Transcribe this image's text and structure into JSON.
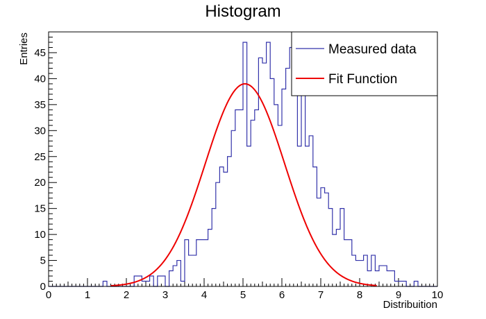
{
  "chart_data": {
    "type": "histogram",
    "title": "Histogram",
    "xlabel": "Distribuition",
    "ylabel": "Entries",
    "xlim": [
      0,
      10
    ],
    "ylim": [
      0,
      49
    ],
    "x_ticks": [
      "0",
      "1",
      "2",
      "3",
      "4",
      "5",
      "6",
      "7",
      "8",
      "9",
      "10"
    ],
    "y_ticks": [
      "0",
      "5",
      "10",
      "15",
      "20",
      "25",
      "30",
      "35",
      "40",
      "45"
    ],
    "bins": {
      "start": 0,
      "width": 0.1,
      "count": 100
    },
    "series": [
      {
        "name": "Measured data",
        "kind": "step",
        "color": "#3333aa",
        "values": [
          0,
          0,
          0,
          0,
          0,
          0,
          0,
          0,
          0,
          0,
          0,
          0,
          0,
          0,
          1,
          0,
          0,
          0,
          0,
          0,
          0,
          0,
          2,
          2,
          1,
          1,
          2,
          0,
          2,
          2,
          0,
          3,
          4,
          5,
          1,
          9,
          6,
          6,
          9,
          9,
          9,
          11,
          15,
          20,
          23,
          22,
          25,
          30,
          34,
          34,
          47,
          27,
          32,
          34,
          44,
          43,
          47,
          40,
          35,
          31,
          38,
          42,
          46,
          38,
          27,
          47,
          27,
          29,
          23,
          17,
          19,
          18,
          15,
          10,
          11,
          15,
          9,
          9,
          6,
          5,
          5,
          6,
          3,
          6,
          3,
          4,
          4,
          3,
          3,
          1,
          1,
          1,
          0,
          0,
          1,
          0,
          0,
          0,
          0,
          0
        ]
      },
      {
        "name": "Fit Function",
        "kind": "gaussian",
        "color": "#ee0000",
        "amplitude": 39,
        "mean": 5.05,
        "sigma": 1.02
      }
    ],
    "legend_position": "top-right"
  },
  "legend": {
    "measured_label": "Measured data",
    "fit_label": "Fit Function"
  }
}
